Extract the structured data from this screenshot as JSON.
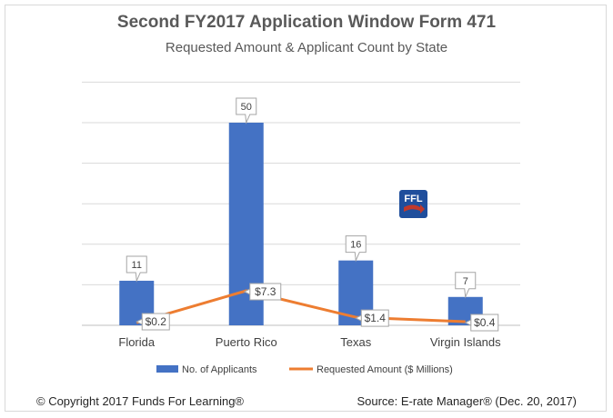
{
  "chart_data": {
    "type": "bar",
    "title": "Second FY2017 Application Window Form 471",
    "subtitle": "Requested Amount & Applicant Count by State",
    "categories": [
      "Florida",
      "Puerto Rico",
      "Texas",
      "Virgin Islands"
    ],
    "series": [
      {
        "name": "No. of Applicants",
        "type": "bar",
        "values": [
          11,
          50,
          16,
          7
        ],
        "labels": [
          "11",
          "50",
          "16",
          "7"
        ],
        "color": "#4472c4"
      },
      {
        "name": "Requested Amount ($ Millions)",
        "type": "line",
        "values": [
          0.2,
          7.3,
          1.4,
          0.4
        ],
        "labels": [
          "$0.2",
          "$7.3",
          "$1.4",
          "$0.4"
        ],
        "color": "#ed7d31"
      }
    ],
    "ylim": [
      0,
      50
    ],
    "ylim_line": [
      0,
      50
    ],
    "grid": true,
    "legend": "bottom"
  },
  "logo": {
    "text": "FFL",
    "color": "#1f4e9c",
    "accent": "#c0392b"
  },
  "footer": {
    "left": "© Copyright 2017 Funds For Learning®",
    "right": "Source: E-rate Manager® (Dec. 20, 2017)"
  }
}
